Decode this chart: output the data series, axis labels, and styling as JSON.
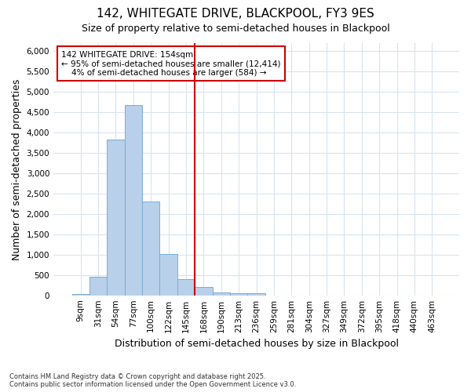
{
  "title1": "142, WHITEGATE DRIVE, BLACKPOOL, FY3 9ES",
  "title2": "Size of property relative to semi-detached houses in Blackpool",
  "xlabel": "Distribution of semi-detached houses by size in Blackpool",
  "ylabel": "Number of semi-detached properties",
  "categories": [
    "9sqm",
    "31sqm",
    "54sqm",
    "77sqm",
    "100sqm",
    "122sqm",
    "145sqm",
    "168sqm",
    "190sqm",
    "213sqm",
    "236sqm",
    "259sqm",
    "281sqm",
    "304sqm",
    "327sqm",
    "349sqm",
    "372sqm",
    "395sqm",
    "418sqm",
    "440sqm",
    "463sqm"
  ],
  "values": [
    25,
    460,
    3820,
    4680,
    2300,
    1010,
    400,
    215,
    80,
    55,
    55,
    0,
    0,
    0,
    0,
    0,
    0,
    0,
    0,
    0,
    0
  ],
  "bar_color": "#b8d0ea",
  "bar_edge_color": "#7aadd4",
  "vline_x_index": 6.5,
  "vline_color": "#cc0000",
  "annotation_text": "142 WHITEGATE DRIVE: 154sqm\n← 95% of semi-detached houses are smaller (12,414)\n    4% of semi-detached houses are larger (584) →",
  "annotation_box_color": "#ffffff",
  "annotation_box_edge": "#cc0000",
  "ylim": [
    0,
    6200
  ],
  "yticks": [
    0,
    500,
    1000,
    1500,
    2000,
    2500,
    3000,
    3500,
    4000,
    4500,
    5000,
    5500,
    6000
  ],
  "footnote": "Contains HM Land Registry data © Crown copyright and database right 2025.\nContains public sector information licensed under the Open Government Licence v3.0.",
  "bg_color": "#ffffff",
  "grid_color": "#d8e4ef",
  "title_fontsize": 11,
  "subtitle_fontsize": 9,
  "axis_label_fontsize": 9,
  "tick_fontsize": 7.5
}
